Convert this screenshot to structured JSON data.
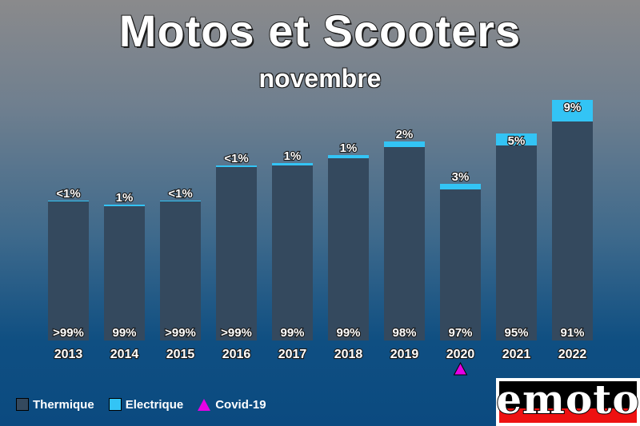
{
  "chart_data": {
    "type": "bar",
    "title": "Motos et Scooters",
    "subtitle": "novembre",
    "categories": [
      "2013",
      "2014",
      "2015",
      "2016",
      "2017",
      "2018",
      "2019",
      "2020",
      "2021",
      "2022"
    ],
    "series": [
      {
        "name": "Thermique",
        "color": "#34495e",
        "values": [
          174,
          168,
          174,
          217,
          219,
          228,
          242,
          189,
          244,
          274
        ],
        "labels": [
          ">99%",
          "99%",
          ">99%",
          ">99%",
          "99%",
          "99%",
          "98%",
          "97%",
          "95%",
          "91%"
        ]
      },
      {
        "name": "Electrique",
        "color": "#33c4f5",
        "values": [
          1,
          2,
          1,
          2,
          3,
          4,
          7,
          7,
          15,
          27
        ],
        "labels": [
          "<1%",
          "1%",
          "<1%",
          "<1%",
          "1%",
          "1%",
          "2%",
          "3%",
          "5%",
          "9%"
        ]
      }
    ],
    "annotations": [
      {
        "category": "2020",
        "marker": "triangle",
        "color": "#e600e6",
        "label": "Covid-19"
      }
    ],
    "ylim": [
      0,
      310
    ],
    "grid": false,
    "legend_position": "bottom-left"
  },
  "legend": {
    "items": [
      {
        "label": "Thermique",
        "color": "#34495e"
      },
      {
        "label": "Electrique",
        "color": "#33c4f5"
      },
      {
        "label": "Covid-19",
        "color": "#e600e6"
      }
    ]
  },
  "logo": {
    "text": "emoto"
  }
}
